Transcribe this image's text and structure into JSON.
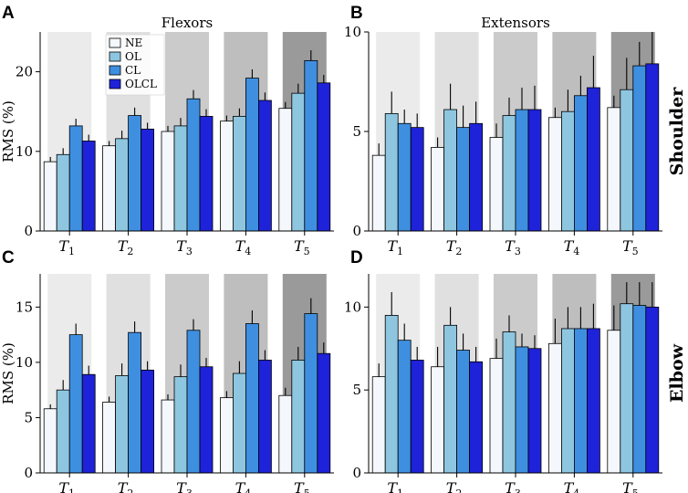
{
  "chart_data": [
    {
      "type": "bar",
      "panel": "A",
      "title": "Flexors",
      "row_label": "",
      "ylabel": "RMS (%)",
      "ylim": [
        0,
        25
      ],
      "yticks": [
        0,
        10,
        20
      ],
      "categories": [
        "T1",
        "T2",
        "T3",
        "T4",
        "T5"
      ],
      "series": [
        {
          "name": "NE",
          "values": [
            8.7,
            10.7,
            12.5,
            13.8,
            15.4
          ],
          "errors": [
            0.6,
            0.6,
            0.7,
            0.7,
            0.8
          ]
        },
        {
          "name": "OL",
          "values": [
            9.6,
            11.6,
            13.2,
            14.4,
            17.3
          ],
          "errors": [
            0.8,
            1.0,
            1.0,
            1.0,
            1.2
          ]
        },
        {
          "name": "CL",
          "values": [
            13.2,
            14.5,
            16.6,
            19.2,
            21.4
          ],
          "errors": [
            0.9,
            1.0,
            1.1,
            1.1,
            1.3
          ]
        },
        {
          "name": "OLCL",
          "values": [
            11.3,
            12.8,
            14.4,
            16.4,
            18.6
          ],
          "errors": [
            0.8,
            0.8,
            0.9,
            1.0,
            1.0
          ]
        }
      ]
    },
    {
      "type": "bar",
      "panel": "B",
      "title": "Extensors",
      "row_label": "Shoulder",
      "ylabel": "",
      "ylim": [
        0,
        10
      ],
      "yticks": [
        0,
        5,
        10
      ],
      "categories": [
        "T1",
        "T2",
        "T3",
        "T4",
        "T5"
      ],
      "series": [
        {
          "name": "NE",
          "values": [
            3.8,
            4.2,
            4.7,
            5.7,
            6.2
          ],
          "errors": [
            0.6,
            0.5,
            0.7,
            0.5,
            0.6
          ]
        },
        {
          "name": "OL",
          "values": [
            5.9,
            6.1,
            5.8,
            6.0,
            7.1
          ],
          "errors": [
            1.1,
            1.3,
            0.9,
            1.1,
            1.6
          ]
        },
        {
          "name": "CL",
          "values": [
            5.4,
            5.2,
            6.1,
            6.8,
            8.3
          ],
          "errors": [
            0.7,
            1.1,
            1.1,
            1.0,
            1.2
          ]
        },
        {
          "name": "OLCL",
          "values": [
            5.2,
            5.4,
            6.1,
            7.2,
            8.4
          ],
          "errors": [
            0.7,
            1.1,
            1.2,
            1.6,
            1.6
          ]
        }
      ]
    },
    {
      "type": "bar",
      "panel": "C",
      "title": "",
      "row_label": "",
      "ylabel": "RMS (%)",
      "ylim": [
        0,
        18
      ],
      "yticks": [
        0,
        5,
        10,
        15
      ],
      "categories": [
        "T1",
        "T2",
        "T3",
        "T4",
        "T5"
      ],
      "series": [
        {
          "name": "NE",
          "values": [
            5.8,
            6.4,
            6.6,
            6.8,
            7.0
          ],
          "errors": [
            0.4,
            0.5,
            0.5,
            0.6,
            0.7
          ]
        },
        {
          "name": "OL",
          "values": [
            7.5,
            8.8,
            8.7,
            9.0,
            10.2
          ],
          "errors": [
            0.9,
            1.1,
            1.1,
            1.1,
            1.2
          ]
        },
        {
          "name": "CL",
          "values": [
            12.5,
            12.7,
            12.9,
            13.5,
            14.4
          ],
          "errors": [
            1.0,
            1.0,
            1.0,
            1.2,
            1.4
          ]
        },
        {
          "name": "OLCL",
          "values": [
            8.9,
            9.3,
            9.6,
            10.2,
            10.8
          ],
          "errors": [
            0.8,
            0.8,
            0.8,
            0.9,
            1.0
          ]
        }
      ]
    },
    {
      "type": "bar",
      "panel": "D",
      "title": "",
      "row_label": "Elbow",
      "ylabel": "",
      "ylim": [
        0,
        12
      ],
      "yticks": [
        0,
        5,
        10
      ],
      "categories": [
        "T1",
        "T2",
        "T3",
        "T4",
        "T5"
      ],
      "series": [
        {
          "name": "NE",
          "values": [
            5.8,
            6.4,
            6.9,
            7.8,
            8.6
          ],
          "errors": [
            0.8,
            1.2,
            1.2,
            1.5,
            1.5
          ]
        },
        {
          "name": "OL",
          "values": [
            9.5,
            8.9,
            8.5,
            8.7,
            10.2
          ],
          "errors": [
            1.4,
            1.1,
            1.0,
            1.3,
            1.3
          ]
        },
        {
          "name": "CL",
          "values": [
            8.0,
            7.4,
            7.6,
            8.7,
            10.1
          ],
          "errors": [
            1.0,
            1.0,
            0.8,
            1.3,
            1.4
          ]
        },
        {
          "name": "OLCL",
          "values": [
            6.8,
            6.7,
            7.5,
            8.7,
            10.0
          ],
          "errors": [
            0.8,
            0.9,
            0.8,
            1.5,
            1.5
          ]
        }
      ]
    }
  ],
  "legend": {
    "entries": [
      "NE",
      "OL",
      "CL",
      "OLCL"
    ],
    "placement": "top-left of panel A"
  },
  "colors": {
    "series": [
      "#f4f8fc",
      "#8ec6e0",
      "#3f8fe0",
      "#1e22d8"
    ],
    "backgrounds": [
      "#ebebeb",
      "#e0e0e0",
      "#cbcbcb",
      "#bebebe",
      "#9a9a9a"
    ]
  }
}
